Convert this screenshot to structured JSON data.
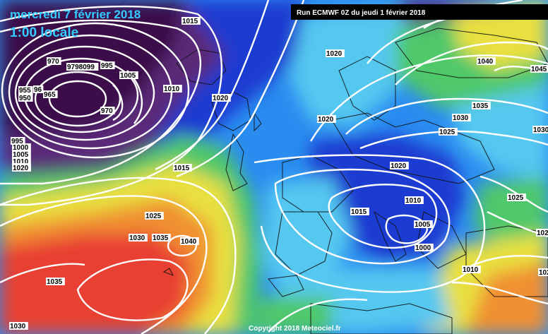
{
  "header": {
    "date": "mercredi 7 février 2018",
    "time": "1:00 locale",
    "run_info": "Run ECMWF 0Z du jeudi 1 février 2018"
  },
  "footer": {
    "credit": "Copyright 2018 Meteociel.fr"
  },
  "isobar_labels": [
    "1015",
    "970",
    "9798099",
    "995",
    "1005",
    "955",
    "96",
    "965",
    "950",
    "970",
    "1010",
    "1020",
    "1020",
    "1020",
    "1040",
    "1045",
    "1035",
    "1030",
    "1030",
    "1025",
    "995",
    "1000",
    "1005",
    "1010",
    "1015",
    "1020",
    "1015",
    "1020",
    "1010",
    "1015",
    "1025",
    "1030",
    "1035",
    "1040",
    "1005",
    "1000",
    "1025",
    "1025",
    "1010",
    "1035",
    "1025",
    "1030"
  ],
  "colors": {
    "deep_low": "#3b0a4a",
    "low": "#5a2a78",
    "mid_low": "#1f3bd0",
    "neutral": "#2a8cf0",
    "light": "#55c8f0",
    "green": "#4fc86a",
    "yellow": "#e8e040",
    "orange": "#f09030",
    "high": "#e84030",
    "isobar": "#ffffff",
    "title": "#33ccff"
  }
}
